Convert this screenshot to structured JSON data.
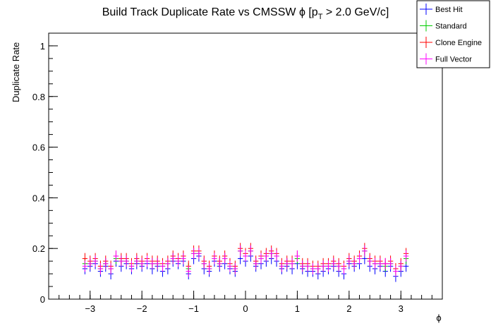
{
  "chart_data": {
    "type": "scatter",
    "title_parts": {
      "prefix": "Build Track Duplicate Rate vs CMSSW ",
      "phi": "ϕ",
      "bracket_open": " [p",
      "sub": "T",
      "suffix": " > 2.0 GeV/c]"
    },
    "xlabel": "ϕ",
    "ylabel": "Duplicate Rate",
    "xlim": [
      -3.8,
      3.8
    ],
    "ylim": [
      0,
      1.05
    ],
    "x_ticks": [
      {
        "value": -3,
        "label": "−3"
      },
      {
        "value": -2,
        "label": "−2"
      },
      {
        "value": -1,
        "label": "−1"
      },
      {
        "value": 0,
        "label": "0"
      },
      {
        "value": 1,
        "label": "1"
      },
      {
        "value": 2,
        "label": "2"
      },
      {
        "value": 3,
        "label": "3"
      }
    ],
    "y_ticks": [
      {
        "value": 0,
        "label": "0"
      },
      {
        "value": 0.2,
        "label": "0.2"
      },
      {
        "value": 0.4,
        "label": "0.4"
      },
      {
        "value": 0.6,
        "label": "0.6"
      },
      {
        "value": 0.8,
        "label": "0.8"
      },
      {
        "value": 1,
        "label": "1"
      }
    ],
    "x": [
      -3.1,
      -3.0,
      -2.9,
      -2.8,
      -2.7,
      -2.6,
      -2.5,
      -2.4,
      -2.3,
      -2.2,
      -2.1,
      -2.0,
      -1.9,
      -1.8,
      -1.7,
      -1.6,
      -1.5,
      -1.4,
      -1.3,
      -1.2,
      -1.1,
      -1.0,
      -0.9,
      -0.8,
      -0.7,
      -0.6,
      -0.5,
      -0.4,
      -0.3,
      -0.2,
      -0.1,
      0.0,
      0.1,
      0.2,
      0.3,
      0.4,
      0.5,
      0.6,
      0.7,
      0.8,
      0.9,
      1.0,
      1.1,
      1.2,
      1.3,
      1.4,
      1.5,
      1.6,
      1.7,
      1.8,
      1.9,
      2.0,
      2.1,
      2.2,
      2.3,
      2.4,
      2.5,
      2.6,
      2.7,
      2.8,
      2.9,
      3.0,
      3.1
    ],
    "x_error": 0.05,
    "y_error": 0.022,
    "series": [
      {
        "name": "Best Hit",
        "color": "#0000ff",
        "values": [
          0.12,
          0.13,
          0.14,
          0.11,
          0.13,
          0.1,
          0.15,
          0.13,
          0.14,
          0.12,
          0.14,
          0.13,
          0.14,
          0.12,
          0.13,
          0.11,
          0.12,
          0.15,
          0.14,
          0.15,
          0.1,
          0.16,
          0.17,
          0.12,
          0.11,
          0.15,
          0.13,
          0.14,
          0.12,
          0.11,
          0.16,
          0.15,
          0.17,
          0.13,
          0.14,
          0.15,
          0.16,
          0.15,
          0.12,
          0.13,
          0.12,
          0.14,
          0.12,
          0.11,
          0.11,
          0.1,
          0.11,
          0.12,
          0.13,
          0.11,
          0.1,
          0.14,
          0.13,
          0.14,
          0.16,
          0.13,
          0.12,
          0.13,
          0.11,
          0.13,
          0.09,
          0.11,
          0.13
        ]
      },
      {
        "name": "Standard",
        "color": "#00cc00",
        "values": [
          0.14,
          0.14,
          0.15,
          0.12,
          0.14,
          0.12,
          0.16,
          0.15,
          0.15,
          0.13,
          0.15,
          0.14,
          0.15,
          0.14,
          0.14,
          0.13,
          0.14,
          0.16,
          0.15,
          0.16,
          0.12,
          0.18,
          0.18,
          0.14,
          0.12,
          0.16,
          0.14,
          0.16,
          0.13,
          0.12,
          0.19,
          0.17,
          0.19,
          0.14,
          0.16,
          0.17,
          0.18,
          0.17,
          0.13,
          0.14,
          0.14,
          0.16,
          0.13,
          0.13,
          0.12,
          0.12,
          0.13,
          0.13,
          0.14,
          0.13,
          0.12,
          0.15,
          0.14,
          0.16,
          0.19,
          0.15,
          0.14,
          0.14,
          0.13,
          0.14,
          0.11,
          0.13,
          0.16
        ]
      },
      {
        "name": "Clone Engine",
        "color": "#ff0000",
        "values": [
          0.16,
          0.15,
          0.16,
          0.13,
          0.15,
          0.13,
          0.17,
          0.16,
          0.16,
          0.14,
          0.16,
          0.15,
          0.16,
          0.15,
          0.15,
          0.14,
          0.15,
          0.17,
          0.16,
          0.17,
          0.13,
          0.19,
          0.19,
          0.15,
          0.13,
          0.17,
          0.15,
          0.17,
          0.14,
          0.13,
          0.2,
          0.18,
          0.2,
          0.15,
          0.17,
          0.18,
          0.19,
          0.18,
          0.14,
          0.15,
          0.15,
          0.17,
          0.14,
          0.14,
          0.13,
          0.13,
          0.14,
          0.14,
          0.15,
          0.14,
          0.13,
          0.16,
          0.15,
          0.17,
          0.2,
          0.16,
          0.15,
          0.15,
          0.14,
          0.15,
          0.12,
          0.14,
          0.18
        ]
      },
      {
        "name": "Full Vector",
        "color": "#ff00ff",
        "values": [
          0.13,
          0.14,
          0.15,
          0.12,
          0.14,
          0.12,
          0.17,
          0.15,
          0.15,
          0.13,
          0.15,
          0.14,
          0.15,
          0.14,
          0.14,
          0.13,
          0.14,
          0.16,
          0.15,
          0.16,
          0.11,
          0.18,
          0.18,
          0.14,
          0.12,
          0.16,
          0.14,
          0.16,
          0.13,
          0.12,
          0.19,
          0.17,
          0.19,
          0.14,
          0.16,
          0.17,
          0.18,
          0.17,
          0.13,
          0.14,
          0.14,
          0.17,
          0.13,
          0.13,
          0.12,
          0.12,
          0.13,
          0.13,
          0.14,
          0.13,
          0.12,
          0.15,
          0.14,
          0.16,
          0.19,
          0.15,
          0.14,
          0.14,
          0.14,
          0.14,
          0.11,
          0.13,
          0.17
        ]
      }
    ],
    "legend_position": "top-right"
  }
}
